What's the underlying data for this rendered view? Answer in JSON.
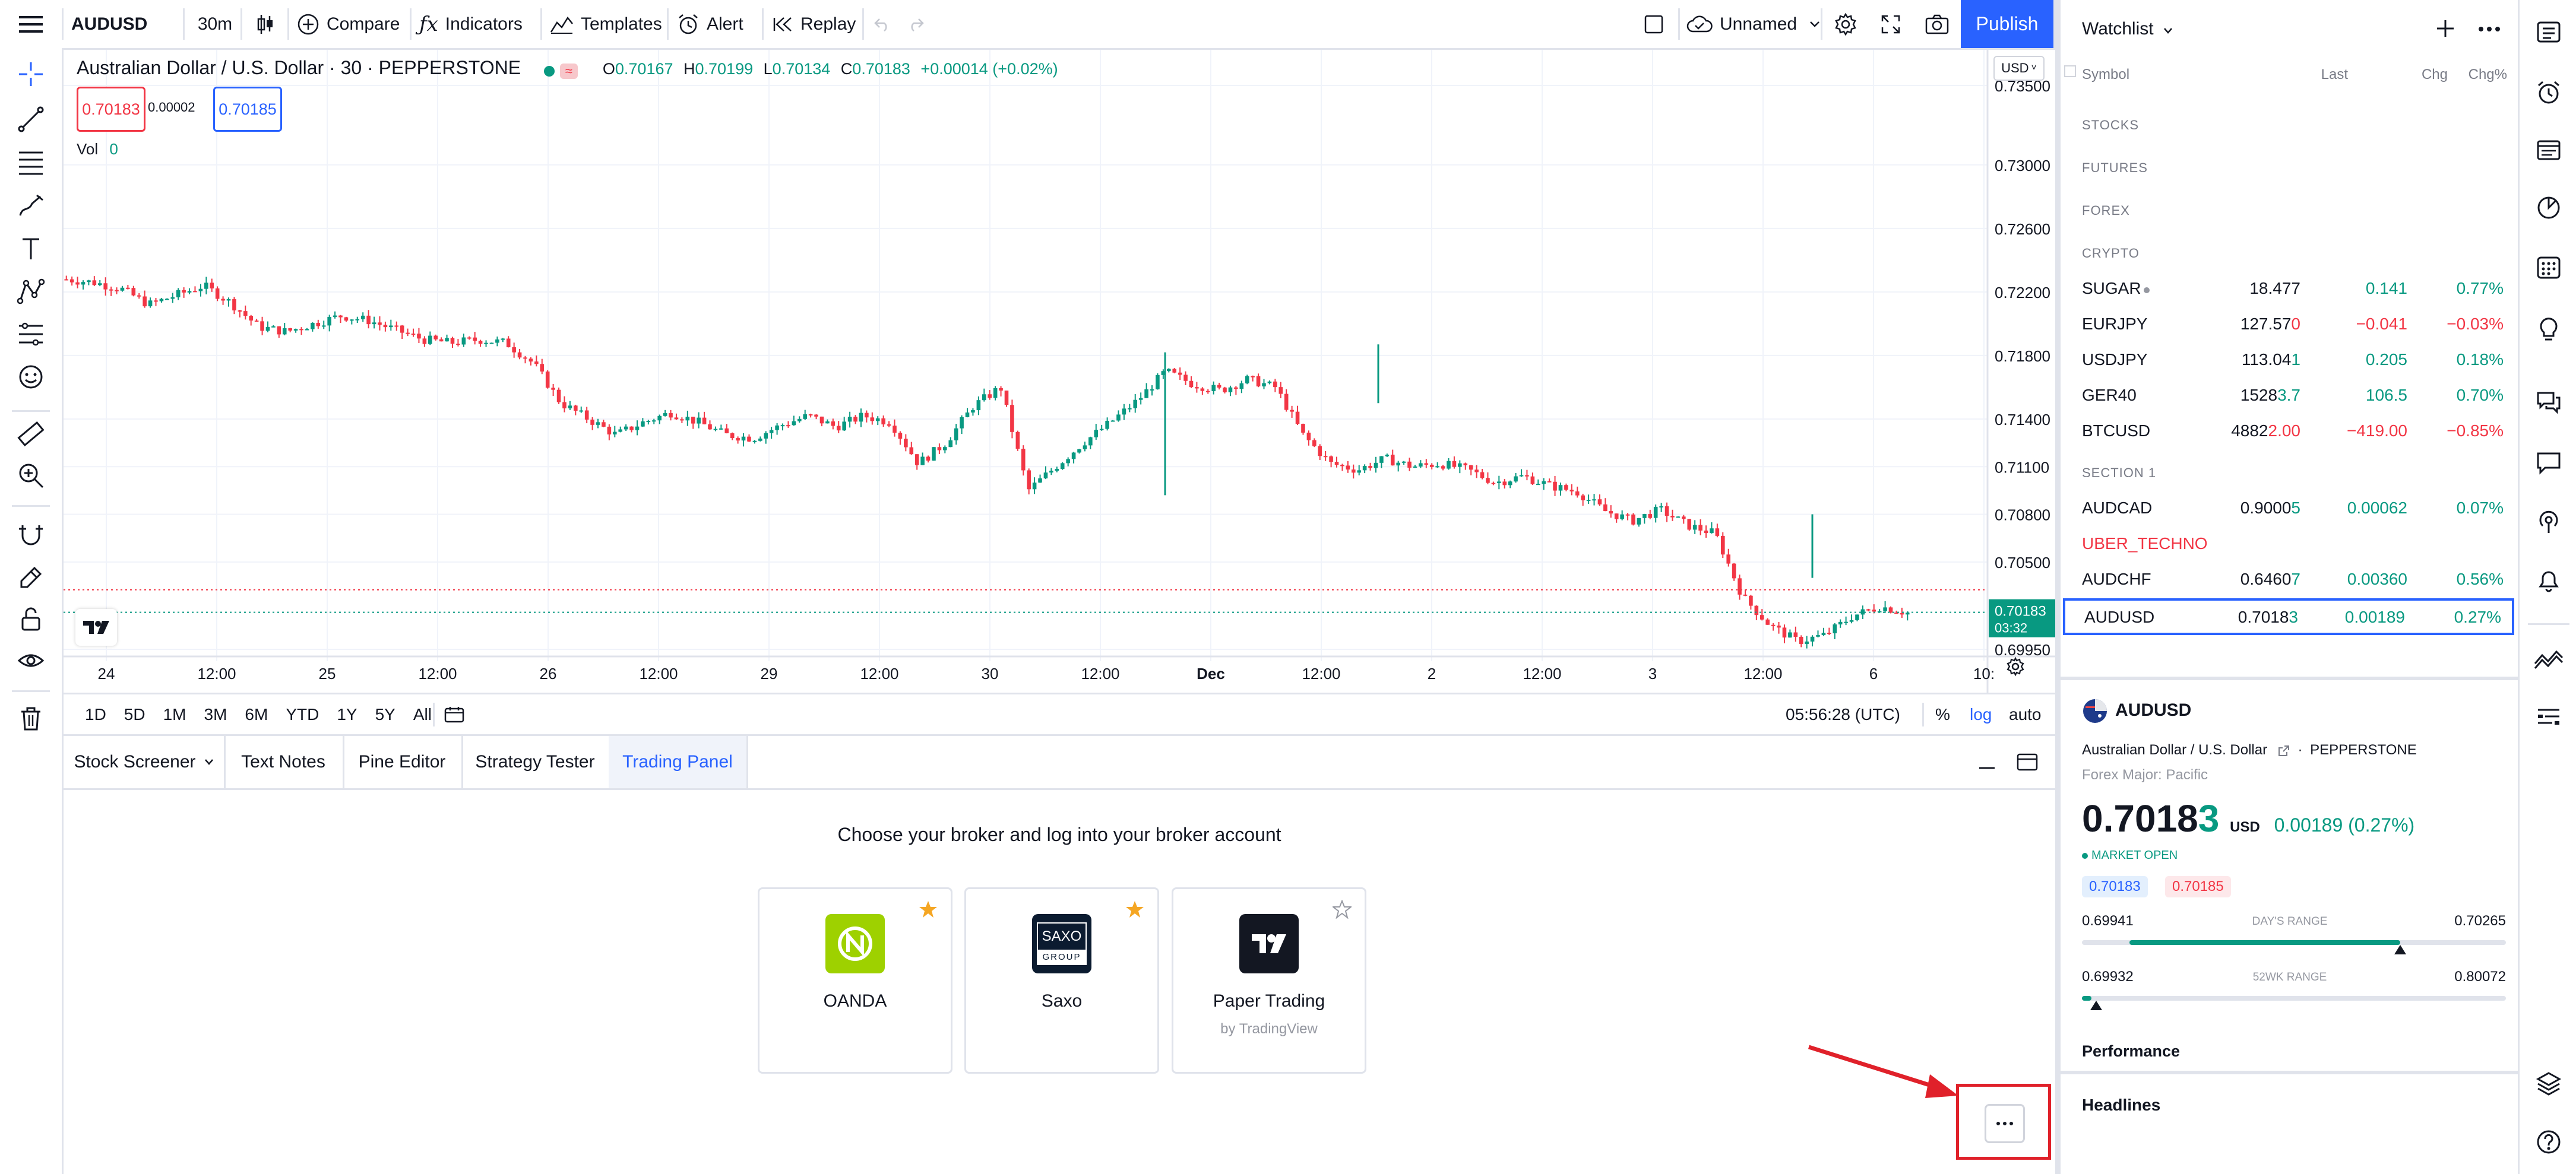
{
  "toolbar": {
    "symbol": "AUDUSD",
    "interval": "30m",
    "compare": "Compare",
    "indicators": "Indicators",
    "templates": "Templates",
    "alert": "Alert",
    "replay": "Replay",
    "layout_name": "Unnamed",
    "publish": "Publish"
  },
  "chart": {
    "title": "Australian Dollar / U.S. Dollar · 30 · PEPPERSTONE",
    "ohlc": {
      "o_label": "O",
      "o": "0.70167",
      "h_label": "H",
      "h": "0.70199",
      "l_label": "L",
      "l": "0.70134",
      "c_label": "C",
      "c": "0.70183",
      "change": "+0.00014 (+0.02%)"
    },
    "sell_price": "0.70183",
    "spread": "0.00002",
    "buy_price": "0.70185",
    "vol_label": "Vol",
    "vol_value": "0",
    "currency": "USD",
    "price_ticks": [
      "0.73500",
      "0.73000",
      "0.72600",
      "0.72200",
      "0.71800",
      "0.71400",
      "0.71100",
      "0.70800",
      "0.70500",
      "0.69950"
    ],
    "time_ticks": [
      "24",
      "12:00",
      "25",
      "12:00",
      "26",
      "12:00",
      "29",
      "12:00",
      "30",
      "12:00",
      "Dec",
      "12:00",
      "2",
      "12:00",
      "3",
      "12:00",
      "6",
      "10:"
    ],
    "last_price": "0.70183",
    "countdown": "03:32",
    "colors": {
      "up": "#089981",
      "down": "#f23645"
    }
  },
  "chart_data": {
    "type": "candlestick",
    "x_range": [
      "24 Nov",
      "6 Dec"
    ],
    "y_range": [
      0.6995,
      0.735
    ],
    "approx_path": [
      [
        0,
        0.7228
      ],
      [
        2,
        0.7226
      ],
      [
        4,
        0.7222
      ],
      [
        6,
        0.7212
      ],
      [
        8,
        0.7218
      ],
      [
        10,
        0.7224
      ],
      [
        12,
        0.7213
      ],
      [
        14,
        0.7198
      ],
      [
        16,
        0.7195
      ],
      [
        18,
        0.72
      ],
      [
        20,
        0.7205
      ],
      [
        22,
        0.7202
      ],
      [
        24,
        0.7196
      ],
      [
        26,
        0.719
      ],
      [
        28,
        0.7188
      ],
      [
        30,
        0.719
      ],
      [
        32,
        0.7188
      ],
      [
        34,
        0.7175
      ],
      [
        36,
        0.715
      ],
      [
        38,
        0.714
      ],
      [
        40,
        0.713
      ],
      [
        42,
        0.7138
      ],
      [
        44,
        0.7144
      ],
      [
        46,
        0.7138
      ],
      [
        48,
        0.713
      ],
      [
        50,
        0.7128
      ],
      [
        52,
        0.7136
      ],
      [
        54,
        0.7142
      ],
      [
        56,
        0.7135
      ],
      [
        58,
        0.7142
      ],
      [
        60,
        0.7138
      ],
      [
        62,
        0.7112
      ],
      [
        64,
        0.7125
      ],
      [
        66,
        0.7148
      ],
      [
        68,
        0.716
      ],
      [
        70,
        0.7095
      ],
      [
        72,
        0.711
      ],
      [
        74,
        0.7125
      ],
      [
        76,
        0.7138
      ],
      [
        78,
        0.7152
      ],
      [
        80,
        0.717
      ],
      [
        82,
        0.7162
      ],
      [
        84,
        0.7158
      ],
      [
        86,
        0.7165
      ],
      [
        88,
        0.716
      ],
      [
        90,
        0.713
      ],
      [
        92,
        0.7112
      ],
      [
        94,
        0.7108
      ],
      [
        96,
        0.7115
      ],
      [
        98,
        0.711
      ],
      [
        100,
        0.7112
      ],
      [
        102,
        0.7108
      ],
      [
        104,
        0.71
      ],
      [
        106,
        0.7104
      ],
      [
        108,
        0.7098
      ],
      [
        110,
        0.7094
      ],
      [
        112,
        0.7082
      ],
      [
        114,
        0.7076
      ],
      [
        116,
        0.7083
      ],
      [
        118,
        0.7073
      ],
      [
        120,
        0.7068
      ],
      [
        122,
        0.7028
      ],
      [
        124,
        0.701
      ],
      [
        126,
        0.7
      ],
      [
        128,
        0.7004
      ],
      [
        130,
        0.7016
      ],
      [
        132,
        0.7022
      ],
      [
        134,
        0.7018
      ]
    ],
    "last": 0.70183
  },
  "range_bar": {
    "ranges": [
      "1D",
      "5D",
      "1M",
      "3M",
      "6M",
      "YTD",
      "1Y",
      "5Y",
      "All"
    ],
    "time": "05:56:28 (UTC)",
    "percent": "%",
    "log": "log",
    "auto": "auto"
  },
  "bottom_panel": {
    "tabs": [
      "Stock Screener",
      "Text Notes",
      "Pine Editor",
      "Strategy Tester",
      "Trading Panel"
    ],
    "active_tab": "Trading Panel",
    "heading": "Choose your broker and log into your broker account",
    "brokers": [
      {
        "name": "OANDA",
        "sub": "",
        "logo_color": "#9ed100",
        "starred": true
      },
      {
        "name": "Saxo",
        "sub": "",
        "logo_color": "#0b1b30",
        "logo_text_top": "SAXO",
        "logo_text_bottom": "GROUP",
        "starred": true
      },
      {
        "name": "Paper Trading",
        "sub": "by TradingView",
        "logo_color": "#131722",
        "starred": false
      }
    ]
  },
  "watchlist": {
    "title": "Watchlist",
    "columns": {
      "symbol": "Symbol",
      "last": "Last",
      "chg": "Chg",
      "chgp": "Chg%"
    },
    "sections": [
      "STOCKS",
      "FUTURES",
      "FOREX",
      "CRYPTO"
    ],
    "rows": [
      {
        "sym": "SUGAR",
        "last_main": "18.477",
        "last_tail": "",
        "chg": "0.141",
        "chgp": "0.77%",
        "dir": "pos"
      },
      {
        "sym": "EURJPY",
        "last_main": "127.57",
        "last_tail": "0",
        "chg": "−0.041",
        "chgp": "−0.03%",
        "dir": "neg"
      },
      {
        "sym": "USDJPY",
        "last_main": "113.04",
        "last_tail": "1",
        "chg": "0.205",
        "chgp": "0.18%",
        "dir": "pos"
      },
      {
        "sym": "GER40",
        "last_main": "1528",
        "last_tail": "3.7",
        "chg": "106.5",
        "chgp": "0.70%",
        "dir": "pos"
      },
      {
        "sym": "BTCUSD",
        "last_main": "4882",
        "last_tail": "2.00",
        "chg": "−419.00",
        "chgp": "−0.85%",
        "dir": "neg"
      }
    ],
    "section2": "SECTION 1",
    "rows2": [
      {
        "sym": "AUDCAD",
        "last_main": "0.9000",
        "last_tail": "5",
        "chg": "0.00062",
        "chgp": "0.07%",
        "dir": "pos"
      },
      {
        "sym": "UBER_TECHNO",
        "last_main": "",
        "last_tail": "",
        "chg": "",
        "chgp": "",
        "dir": "neg"
      },
      {
        "sym": "AUDCHF",
        "last_main": "0.6460",
        "last_tail": "7",
        "chg": "0.00360",
        "chgp": "0.56%",
        "dir": "pos"
      },
      {
        "sym": "AUDUSD",
        "last_main": "0.7018",
        "last_tail": "3",
        "chg": "0.00189",
        "chgp": "0.27%",
        "dir": "pos"
      }
    ]
  },
  "details": {
    "symbol": "AUDUSD",
    "description": "Australian Dollar / U.S. Dollar",
    "exchange": "PEPPERSTONE",
    "category": "Forex Major: Pacific",
    "price_main": "0.7018",
    "price_tail": "3",
    "currency": "USD",
    "change": "0.00189 (0.27%)",
    "market_status": "MARKET OPEN",
    "bid": "0.70183",
    "ask": "0.70185",
    "day_low": "0.69941",
    "day_high": "0.70265",
    "day_label": "DAY'S RANGE",
    "day_progress": 0.75,
    "wk_low": "0.69932",
    "wk_high": "0.80072",
    "wk_label": "52WK RANGE",
    "wk_progress": 0.02,
    "performance": "Performance",
    "headlines": "Headlines"
  }
}
